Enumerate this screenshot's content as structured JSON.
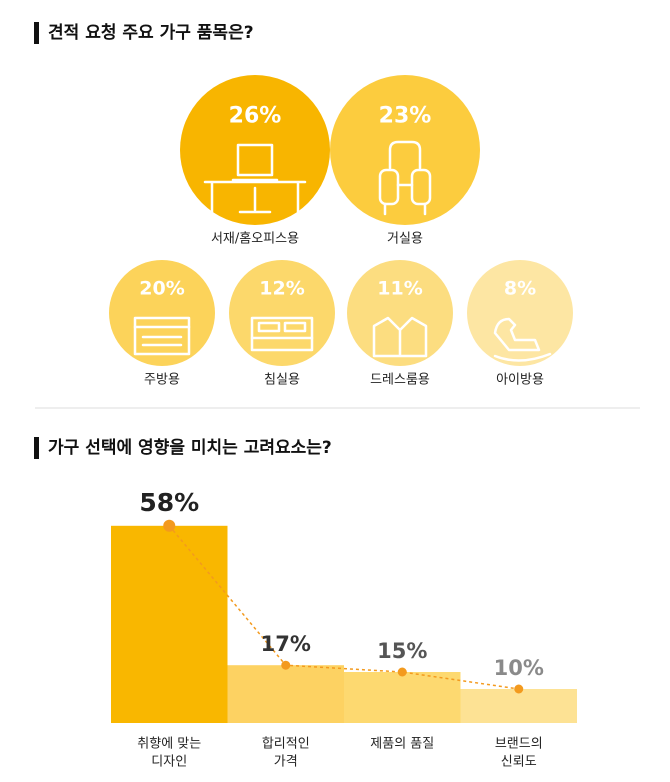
{
  "charts_title": null,
  "chart_data": [
    {
      "type": "circle",
      "title": "견적 요청 주요 가구 품목은?",
      "categories": [
        "서재/홈오피스용",
        "거실용",
        "주방용",
        "침실용",
        "드레스룸용",
        "아이방용"
      ],
      "values": [
        26,
        23,
        20,
        12,
        11,
        8
      ],
      "value_labels": [
        "26%",
        "23%",
        "20%",
        "12%",
        "11%",
        "8%"
      ],
      "colors": [
        "#f8b500",
        "#fccc3e",
        "#fcd35a",
        "#fcd86b",
        "#fcdd80",
        "#fde6a3"
      ]
    },
    {
      "type": "bar",
      "title": "가구 선택에 영향을 미치는 고려요소는?",
      "categories": [
        [
          "취향에 맞는",
          "디자인"
        ],
        [
          "합리적인",
          "가격"
        ],
        [
          "제품의 품질"
        ],
        [
          "브랜드의",
          "신뢰도"
        ]
      ],
      "values": [
        58,
        17,
        15,
        10
      ],
      "value_labels": [
        "58%",
        "17%",
        "15%",
        "10%"
      ],
      "colors": [
        "#f9b700",
        "#fdd262",
        "#fdd970",
        "#fde294"
      ],
      "label_colors": [
        "#222222",
        "#333333",
        "#555555",
        "#8a8a8a"
      ],
      "point_color": "#f39a1e",
      "ylim": [
        0,
        60
      ]
    }
  ]
}
